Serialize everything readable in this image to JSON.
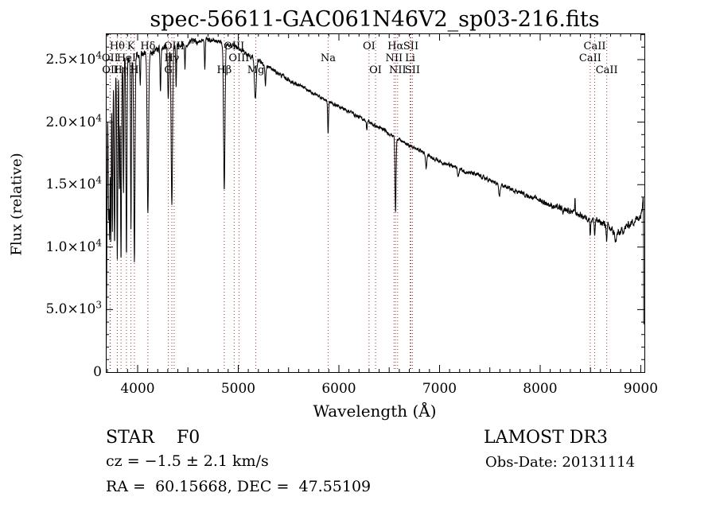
{
  "chart_data": {
    "type": "line",
    "title": "spec-56611-GAC061N46V2_sp03-216.fits",
    "xlabel": "Wavelength (Å)",
    "ylabel": "Flux (relative)",
    "xlim": [
      3684,
      9036
    ],
    "ylim": [
      0,
      27100
    ],
    "grid": false,
    "line_color": "#000000",
    "marker_color": "#993333",
    "x_ticks": [
      {
        "v": 4000,
        "label": "4000"
      },
      {
        "v": 5000,
        "label": "5000"
      },
      {
        "v": 6000,
        "label": "6000"
      },
      {
        "v": 7000,
        "label": "7000"
      },
      {
        "v": 8000,
        "label": "8000"
      },
      {
        "v": 9000,
        "label": "9000"
      }
    ],
    "x_minor_step": 100,
    "y_ticks": [
      {
        "v": 0,
        "label": "0",
        "exp": ""
      },
      {
        "v": 5000,
        "label": "5.0×10",
        "exp": "3"
      },
      {
        "v": 10000,
        "label": "1.0×10",
        "exp": "4"
      },
      {
        "v": 15000,
        "label": "1.5×10",
        "exp": "4"
      },
      {
        "v": 20000,
        "label": "2.0×10",
        "exp": "4"
      },
      {
        "v": 25000,
        "label": "2.5×10",
        "exp": "4"
      }
    ],
    "y_minor_step": 1000,
    "line_markers": [
      {
        "wl": 3726,
        "label": "OII",
        "row": 2
      },
      {
        "wl": 3729,
        "label": "OII",
        "row": 3
      },
      {
        "wl": 3798,
        "label": "Hθ",
        "row": 1
      },
      {
        "wl": 3835,
        "label": "Hη",
        "row": 3
      },
      {
        "wl": 3889,
        "label": "HeI",
        "row": 2
      },
      {
        "wl": 3934,
        "label": "K",
        "row": 1
      },
      {
        "wl": 3968,
        "label": "H",
        "row": 3
      },
      {
        "wl": 4102,
        "label": "Hδ",
        "row": 1
      },
      {
        "wl": 4305,
        "label": "G",
        "row": 3
      },
      {
        "wl": 4340,
        "label": "Hγ",
        "row": 2
      },
      {
        "wl": 4363,
        "label": "OIII",
        "row": 1
      },
      {
        "wl": 4861,
        "label": "Hβ",
        "row": 3
      },
      {
        "wl": 4959,
        "label": "OIII",
        "row": 1
      },
      {
        "wl": 5007,
        "label": "OIII",
        "row": 2
      },
      {
        "wl": 5175,
        "label": "Mg",
        "row": 3
      },
      {
        "wl": 5893,
        "label": "Na",
        "row": 2
      },
      {
        "wl": 6300,
        "label": "OI",
        "row": 1
      },
      {
        "wl": 6364,
        "label": "OI",
        "row": 3
      },
      {
        "wl": 6548,
        "label": "NII",
        "row": 2
      },
      {
        "wl": 6563,
        "label": "Hα",
        "row": 1
      },
      {
        "wl": 6584,
        "label": "NII",
        "row": 3
      },
      {
        "wl": 6708,
        "label": "Li",
        "row": 2
      },
      {
        "wl": 6716,
        "label": "SII",
        "row": 1
      },
      {
        "wl": 6731,
        "label": "SII",
        "row": 3
      },
      {
        "wl": 8498,
        "label": "CaII",
        "row": 2
      },
      {
        "wl": 8542,
        "label": "CaII",
        "row": 1
      },
      {
        "wl": 8662,
        "label": "CaII",
        "row": 3
      }
    ],
    "continuum": [
      [
        3684,
        300
      ],
      [
        3688,
        1500
      ],
      [
        3692,
        6000
      ],
      [
        3696,
        13000
      ],
      [
        3702,
        20500
      ],
      [
        3712,
        22800
      ],
      [
        3725,
        23600
      ],
      [
        3745,
        24200
      ],
      [
        3775,
        24600
      ],
      [
        3820,
        24900
      ],
      [
        3860,
        25000
      ],
      [
        3900,
        25100
      ],
      [
        3950,
        25200
      ],
      [
        4000,
        25300
      ],
      [
        4060,
        25500
      ],
      [
        4120,
        25600
      ],
      [
        4180,
        25800
      ],
      [
        4240,
        25900
      ],
      [
        4300,
        26000
      ],
      [
        4360,
        26100
      ],
      [
        4420,
        26200
      ],
      [
        4480,
        26300
      ],
      [
        4550,
        26400
      ],
      [
        4620,
        26500
      ],
      [
        4700,
        26600
      ],
      [
        4780,
        26500
      ],
      [
        4860,
        26300
      ],
      [
        4940,
        26100
      ],
      [
        5000,
        25900
      ],
      [
        5080,
        25500
      ],
      [
        5160,
        25100
      ],
      [
        5240,
        24700
      ],
      [
        5320,
        24300
      ],
      [
        5400,
        23900
      ],
      [
        5480,
        23500
      ],
      [
        5560,
        23100
      ],
      [
        5640,
        22800
      ],
      [
        5720,
        22400
      ],
      [
        5800,
        22100
      ],
      [
        5880,
        21700
      ],
      [
        5960,
        21400
      ],
      [
        6040,
        21100
      ],
      [
        6120,
        20800
      ],
      [
        6200,
        20400
      ],
      [
        6280,
        20100
      ],
      [
        6360,
        19700
      ],
      [
        6440,
        19400
      ],
      [
        6520,
        19000
      ],
      [
        6600,
        18600
      ],
      [
        6680,
        18200
      ],
      [
        6760,
        17900
      ],
      [
        6840,
        17600
      ],
      [
        6920,
        17200
      ],
      [
        7000,
        16900
      ],
      [
        7080,
        16600
      ],
      [
        7160,
        16400
      ],
      [
        7240,
        16100
      ],
      [
        7320,
        15900
      ],
      [
        7400,
        15700
      ],
      [
        7480,
        15400
      ],
      [
        7560,
        15100
      ],
      [
        7640,
        14900
      ],
      [
        7720,
        14600
      ],
      [
        7800,
        14400
      ],
      [
        7880,
        14100
      ],
      [
        7960,
        13900
      ],
      [
        8040,
        13600
      ],
      [
        8120,
        13300
      ],
      [
        8200,
        13100
      ],
      [
        8280,
        12900
      ],
      [
        8360,
        12700
      ],
      [
        8440,
        12400
      ],
      [
        8520,
        12200
      ],
      [
        8600,
        12000
      ],
      [
        8680,
        11600
      ],
      [
        8740,
        11100
      ],
      [
        8790,
        11100
      ],
      [
        8840,
        11500
      ],
      [
        8900,
        11900
      ],
      [
        8950,
        12200
      ],
      [
        9000,
        12500
      ],
      [
        9012,
        13200
      ],
      [
        9022,
        14200
      ],
      [
        9027,
        13800
      ],
      [
        9030,
        4000
      ],
      [
        9033,
        300
      ]
    ],
    "absorption_lines": [
      [
        3712,
        12500,
        4
      ],
      [
        3722,
        11500,
        4
      ],
      [
        3734,
        10500,
        4
      ],
      [
        3750,
        11500,
        4
      ],
      [
        3771,
        10300,
        5
      ],
      [
        3798,
        9400,
        5
      ],
      [
        3819,
        14500,
        4
      ],
      [
        3835,
        8900,
        5
      ],
      [
        3860,
        14500,
        4
      ],
      [
        3889,
        9300,
        5
      ],
      [
        3934,
        11500,
        4
      ],
      [
        3968,
        9100,
        6
      ],
      [
        4026,
        22800,
        4
      ],
      [
        4102,
        12800,
        7
      ],
      [
        4227,
        22400,
        4
      ],
      [
        4305,
        22000,
        6
      ],
      [
        4340,
        13400,
        7
      ],
      [
        4383,
        22800,
        4
      ],
      [
        4471,
        24200,
        4
      ],
      [
        4668,
        24400,
        4
      ],
      [
        4861,
        14700,
        7
      ],
      [
        5170,
        21900,
        9
      ],
      [
        5270,
        23000,
        5
      ],
      [
        5893,
        19100,
        4
      ],
      [
        6277,
        19400,
        4
      ],
      [
        6563,
        12700,
        5
      ],
      [
        6867,
        16400,
        6
      ],
      [
        7186,
        15600,
        6
      ],
      [
        7594,
        14100,
        8
      ],
      [
        8227,
        12400,
        4
      ],
      [
        8498,
        11100,
        4
      ],
      [
        8542,
        10900,
        4
      ],
      [
        8662,
        10500,
        4
      ],
      [
        8752,
        10400,
        7
      ]
    ],
    "emission_spikes": [
      [
        8346,
        1200,
        3
      ]
    ],
    "noise": {
      "seed": 123456789,
      "smooth": 0.55,
      "amps": [
        [
          4000,
          600
        ],
        [
          4600,
          430
        ],
        [
          5600,
          270
        ],
        [
          6800,
          220
        ],
        [
          8000,
          260
        ],
        [
          8600,
          380
        ],
        [
          99999,
          500
        ]
      ]
    }
  },
  "footer": {
    "class_label": "STAR    F0",
    "survey": "LAMOST DR3",
    "cz": "cz = −1.5 ± 2.1 km/s",
    "obs_date": "Obs-Date: 20131114",
    "radec": "RA =  60.15668, DEC =  47.55109"
  }
}
